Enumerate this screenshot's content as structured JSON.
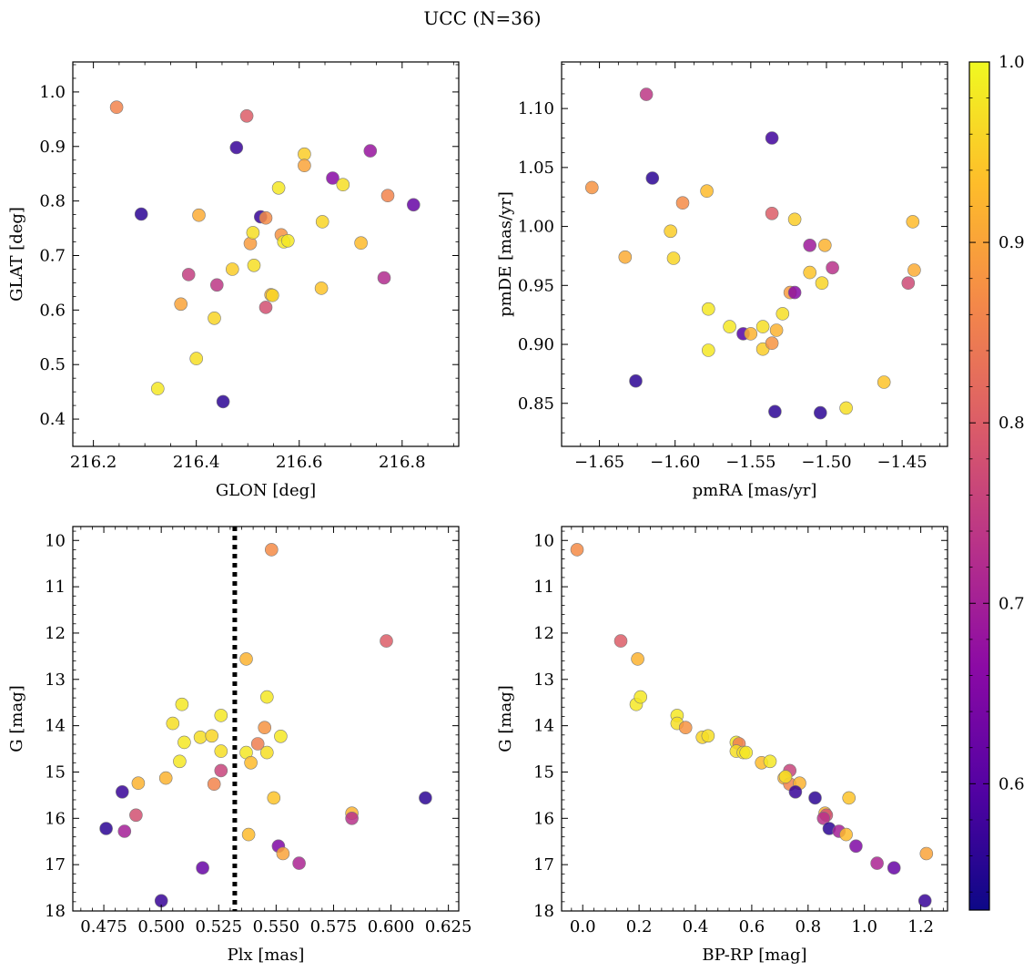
{
  "figure": {
    "title": "UCC (N=36)",
    "colormap": [
      "#0d0887",
      "#5302a3",
      "#8b0aa5",
      "#b83289",
      "#db5c68",
      "#f48849",
      "#febd2a",
      "#f0f921"
    ],
    "colorbar": {
      "range": [
        0.53,
        1.0
      ],
      "ticks": [
        0.6,
        0.7,
        0.8,
        0.9,
        1.0
      ],
      "tick_labels": [
        "0.6",
        "0.7",
        "0.8",
        "0.9",
        "1.0"
      ]
    }
  },
  "chart_data": [
    {
      "type": "scatter",
      "xlabel": "GLON [deg]",
      "ylabel": "GLAT [deg]",
      "xlim": [
        216.16,
        216.91
      ],
      "ylim": [
        0.35,
        1.055
      ],
      "xticks": [
        216.2,
        216.4,
        216.6,
        216.8
      ],
      "xtick_labels": [
        "216.2",
        "216.4",
        "216.6",
        "216.8"
      ],
      "yticks": [
        0.4,
        0.5,
        0.6,
        0.7,
        0.8,
        0.9,
        1.0
      ],
      "ytick_labels": [
        "0.4",
        "0.5",
        "0.6",
        "0.7",
        "0.8",
        "0.9",
        "1.0"
      ],
      "points": [
        [
          216.245,
          0.972,
          0.86
        ],
        [
          216.293,
          0.776,
          0.56
        ],
        [
          216.325,
          0.456,
          0.98
        ],
        [
          216.37,
          0.611,
          0.9
        ],
        [
          216.385,
          0.665,
          0.75
        ],
        [
          216.4,
          0.511,
          0.97
        ],
        [
          216.405,
          0.774,
          0.91
        ],
        [
          216.435,
          0.585,
          0.96
        ],
        [
          216.44,
          0.646,
          0.74
        ],
        [
          216.452,
          0.432,
          0.56
        ],
        [
          216.47,
          0.675,
          0.95
        ],
        [
          216.478,
          0.898,
          0.57
        ],
        [
          216.498,
          0.956,
          0.8
        ],
        [
          216.505,
          0.722,
          0.89
        ],
        [
          216.51,
          0.742,
          0.97
        ],
        [
          216.512,
          0.682,
          0.97
        ],
        [
          216.525,
          0.771,
          0.57
        ],
        [
          216.535,
          0.769,
          0.87
        ],
        [
          216.535,
          0.605,
          0.78
        ],
        [
          216.545,
          0.628,
          0.92
        ],
        [
          216.548,
          0.627,
          0.96
        ],
        [
          216.56,
          0.824,
          0.98
        ],
        [
          216.565,
          0.738,
          0.88
        ],
        [
          216.57,
          0.725,
          0.98
        ],
        [
          216.578,
          0.727,
          0.98
        ],
        [
          216.61,
          0.886,
          0.95
        ],
        [
          216.61,
          0.865,
          0.9
        ],
        [
          216.643,
          0.64,
          0.94
        ],
        [
          216.645,
          0.762,
          0.96
        ],
        [
          216.665,
          0.842,
          0.66
        ],
        [
          216.685,
          0.83,
          0.97
        ],
        [
          216.72,
          0.723,
          0.93
        ],
        [
          216.738,
          0.892,
          0.68
        ],
        [
          216.765,
          0.659,
          0.72
        ],
        [
          216.772,
          0.81,
          0.86
        ],
        [
          216.822,
          0.793,
          0.62
        ]
      ]
    },
    {
      "type": "scatter",
      "xlabel": "pmRA [mas/yr]",
      "ylabel": "pmDE [mas/yr]",
      "xlim": [
        -1.675,
        -1.42
      ],
      "ylim": [
        0.8135,
        1.1395
      ],
      "xticks": [
        -1.65,
        -1.6,
        -1.55,
        -1.5,
        -1.45
      ],
      "xtick_labels": [
        "−1.65",
        "−1.60",
        "−1.55",
        "−1.50",
        "−1.45"
      ],
      "yticks": [
        0.85,
        0.9,
        0.95,
        1.0,
        1.05,
        1.1
      ],
      "ytick_labels": [
        "0.85",
        "0.90",
        "0.95",
        "1.00",
        "1.05",
        "1.10"
      ],
      "points": [
        [
          -1.655,
          1.033,
          0.88
        ],
        [
          -1.633,
          0.974,
          0.91
        ],
        [
          -1.626,
          0.869,
          0.56
        ],
        [
          -1.619,
          1.112,
          0.74
        ],
        [
          -1.615,
          1.041,
          0.56
        ],
        [
          -1.603,
          0.996,
          0.95
        ],
        [
          -1.601,
          0.973,
          0.96
        ],
        [
          -1.595,
          1.02,
          0.87
        ],
        [
          -1.579,
          1.03,
          0.93
        ],
        [
          -1.578,
          0.93,
          0.98
        ],
        [
          -1.578,
          0.895,
          0.98
        ],
        [
          -1.564,
          0.915,
          0.98
        ],
        [
          -1.555,
          0.909,
          0.6
        ],
        [
          -1.55,
          0.909,
          0.92
        ],
        [
          -1.542,
          0.915,
          0.97
        ],
        [
          -1.542,
          0.896,
          0.95
        ],
        [
          -1.536,
          0.901,
          0.88
        ],
        [
          -1.536,
          1.075,
          0.58
        ],
        [
          -1.536,
          1.011,
          0.8
        ],
        [
          -1.534,
          0.843,
          0.56
        ],
        [
          -1.533,
          0.912,
          0.92
        ],
        [
          -1.529,
          0.926,
          0.97
        ],
        [
          -1.524,
          0.944,
          0.89
        ],
        [
          -1.521,
          0.944,
          0.66
        ],
        [
          -1.521,
          1.006,
          0.95
        ],
        [
          -1.511,
          0.984,
          0.69
        ],
        [
          -1.511,
          0.961,
          0.94
        ],
        [
          -1.504,
          0.842,
          0.56
        ],
        [
          -1.503,
          0.952,
          0.96
        ],
        [
          -1.501,
          0.984,
          0.92
        ],
        [
          -1.496,
          0.965,
          0.73
        ],
        [
          -1.487,
          0.846,
          0.97
        ],
        [
          -1.462,
          0.868,
          0.94
        ],
        [
          -1.446,
          0.952,
          0.77
        ],
        [
          -1.443,
          1.004,
          0.93
        ],
        [
          -1.442,
          0.963,
          0.91
        ]
      ]
    },
    {
      "type": "scatter",
      "xlabel": "Plx [mas]",
      "ylabel": "G [mag]",
      "xlim": [
        0.4615,
        0.6295
      ],
      "ylim": [
        18.0,
        9.7
      ],
      "y_inverted": true,
      "xticks": [
        0.475,
        0.5,
        0.525,
        0.55,
        0.575,
        0.6,
        0.625
      ],
      "xtick_labels": [
        "0.475",
        "0.500",
        "0.525",
        "0.550",
        "0.575",
        "0.600",
        "0.625"
      ],
      "yticks": [
        10,
        11,
        12,
        13,
        14,
        15,
        16,
        17,
        18
      ],
      "ytick_labels": [
        "10",
        "11",
        "12",
        "13",
        "14",
        "15",
        "16",
        "17",
        "18"
      ],
      "vline": 0.532,
      "points": [
        [
          0.476,
          16.22,
          0.56
        ],
        [
          0.483,
          15.43,
          0.57
        ],
        [
          0.484,
          16.28,
          0.7
        ],
        [
          0.489,
          15.93,
          0.78
        ],
        [
          0.49,
          15.24,
          0.92
        ],
        [
          0.5,
          17.78,
          0.57
        ],
        [
          0.502,
          15.13,
          0.92
        ],
        [
          0.505,
          13.95,
          0.97
        ],
        [
          0.508,
          14.77,
          0.98
        ],
        [
          0.509,
          13.54,
          0.98
        ],
        [
          0.51,
          14.36,
          0.98
        ],
        [
          0.517,
          14.25,
          0.97
        ],
        [
          0.518,
          17.07,
          0.62
        ],
        [
          0.522,
          14.22,
          0.96
        ],
        [
          0.523,
          15.26,
          0.86
        ],
        [
          0.526,
          13.78,
          0.98
        ],
        [
          0.526,
          14.55,
          0.97
        ],
        [
          0.526,
          14.97,
          0.76
        ],
        [
          0.537,
          14.58,
          0.98
        ],
        [
          0.537,
          12.56,
          0.92
        ],
        [
          0.538,
          16.35,
          0.93
        ],
        [
          0.539,
          14.8,
          0.93
        ],
        [
          0.542,
          14.39,
          0.85
        ],
        [
          0.545,
          14.04,
          0.88
        ],
        [
          0.546,
          13.38,
          0.98
        ],
        [
          0.546,
          14.58,
          0.97
        ],
        [
          0.548,
          10.2,
          0.87
        ],
        [
          0.549,
          15.56,
          0.94
        ],
        [
          0.551,
          16.6,
          0.65
        ],
        [
          0.552,
          14.23,
          0.98
        ],
        [
          0.553,
          16.76,
          0.9
        ],
        [
          0.56,
          16.97,
          0.71
        ],
        [
          0.583,
          15.89,
          0.92
        ],
        [
          0.583,
          16.0,
          0.73
        ],
        [
          0.598,
          12.17,
          0.8
        ],
        [
          0.615,
          15.56,
          0.56
        ]
      ]
    },
    {
      "type": "scatter",
      "xlabel": "BP-RP [mag]",
      "ylabel": "G [mag]",
      "xlim": [
        -0.075,
        1.295
      ],
      "ylim": [
        18.0,
        9.7
      ],
      "y_inverted": true,
      "xticks": [
        0.0,
        0.2,
        0.4,
        0.6,
        0.8,
        1.0,
        1.2
      ],
      "xtick_labels": [
        "0.0",
        "0.2",
        "0.4",
        "0.6",
        "0.8",
        "1.0",
        "1.2"
      ],
      "yticks": [
        10,
        11,
        12,
        13,
        14,
        15,
        16,
        17,
        18
      ],
      "ytick_labels": [
        "10",
        "11",
        "12",
        "13",
        "14",
        "15",
        "16",
        "17",
        "18"
      ],
      "points": [
        [
          -0.02,
          10.2,
          0.87
        ],
        [
          0.135,
          12.17,
          0.8
        ],
        [
          0.195,
          12.56,
          0.92
        ],
        [
          0.19,
          13.54,
          0.98
        ],
        [
          0.205,
          13.38,
          0.98
        ],
        [
          0.335,
          13.78,
          0.98
        ],
        [
          0.335,
          13.95,
          0.97
        ],
        [
          0.365,
          14.04,
          0.88
        ],
        [
          0.425,
          14.25,
          0.96
        ],
        [
          0.445,
          14.22,
          0.97
        ],
        [
          0.545,
          14.36,
          0.98
        ],
        [
          0.555,
          14.39,
          0.85
        ],
        [
          0.545,
          14.55,
          0.97
        ],
        [
          0.57,
          14.58,
          0.97
        ],
        [
          0.58,
          14.58,
          0.98
        ],
        [
          0.635,
          14.8,
          0.93
        ],
        [
          0.665,
          14.77,
          0.98
        ],
        [
          0.735,
          14.97,
          0.76
        ],
        [
          0.715,
          15.13,
          0.92
        ],
        [
          0.735,
          15.26,
          0.86
        ],
        [
          0.77,
          15.24,
          0.92
        ],
        [
          0.755,
          15.43,
          0.57
        ],
        [
          0.825,
          15.56,
          0.56
        ],
        [
          0.945,
          15.56,
          0.94
        ],
        [
          0.86,
          15.89,
          0.92
        ],
        [
          0.865,
          15.93,
          0.78
        ],
        [
          0.855,
          16.0,
          0.73
        ],
        [
          0.875,
          16.22,
          0.56
        ],
        [
          0.91,
          16.28,
          0.7
        ],
        [
          0.935,
          16.35,
          0.93
        ],
        [
          0.97,
          16.6,
          0.65
        ],
        [
          1.045,
          16.97,
          0.71
        ],
        [
          1.105,
          17.07,
          0.62
        ],
        [
          1.22,
          16.76,
          0.9
        ],
        [
          1.215,
          17.78,
          0.57
        ],
        [
          0.72,
          15.1,
          0.97
        ]
      ]
    }
  ]
}
